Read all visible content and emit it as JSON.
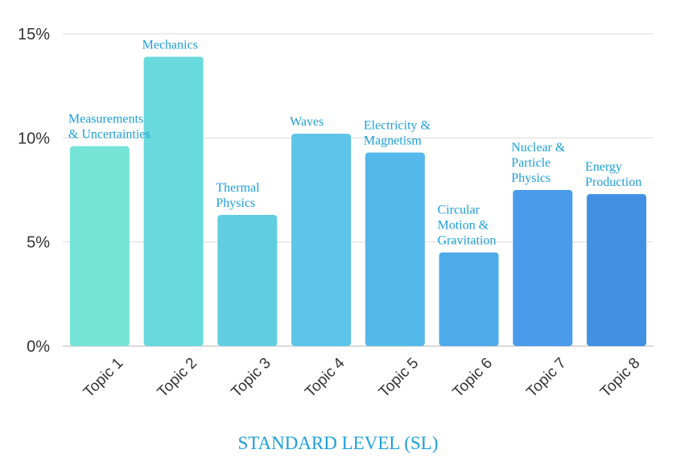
{
  "chart_data": {
    "type": "bar",
    "categories": [
      "Topic 1",
      "Topic 2",
      "Topic 3",
      "Topic 4",
      "Topic 5",
      "Topic 6",
      "Topic 7",
      "Topic 8"
    ],
    "values": [
      9.6,
      13.9,
      6.3,
      10.2,
      9.3,
      4.5,
      7.5,
      7.3
    ],
    "bar_labels": [
      [
        "Measurements",
        "& Uncertainties"
      ],
      [
        "Mechanics"
      ],
      [
        "Thermal",
        "Physics"
      ],
      [
        "Waves"
      ],
      [
        "Electricity &",
        "Magnetism"
      ],
      [
        "Circular",
        "Motion &",
        "Gravitation"
      ],
      [
        "Nuclear &",
        "Particle",
        "Physics"
      ],
      [
        "Energy",
        "Production"
      ]
    ],
    "bar_colors": [
      "#75e3d5",
      "#68d9dc",
      "#61cde1",
      "#5cc5e8",
      "#55b8ea",
      "#4faaea",
      "#4a9cea",
      "#4390e3"
    ],
    "label_color": "#1e9fd8",
    "y_ticks": [
      "0%",
      "5%",
      "10%",
      "15%"
    ],
    "y_tick_values": [
      0,
      5,
      10,
      15
    ],
    "ylim": [
      0,
      15
    ],
    "xlabel": "STANDARD LEVEL (SL)",
    "ylabel": "",
    "title": "",
    "grid": true
  }
}
